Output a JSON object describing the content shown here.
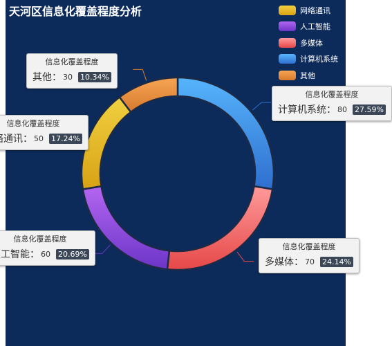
{
  "chart_data": {
    "type": "pie",
    "title": "天河区信息化覆盖程度分析",
    "series_name": "信息化覆盖程度",
    "slices": [
      {
        "name": "网络通讯",
        "value": 50,
        "percent": "17.24%",
        "color_top": "#f0d040",
        "color_bottom": "#d8a215"
      },
      {
        "name": "人工智能",
        "value": 60,
        "percent": "20.69%",
        "color_top": "#b366f0",
        "color_bottom": "#6c35c8"
      },
      {
        "name": "多媒体",
        "value": 70,
        "percent": "24.14%",
        "color_top": "#ff9a9a",
        "color_bottom": "#e64848"
      },
      {
        "name": "计算机系统",
        "value": 80,
        "percent": "27.59%",
        "color_top": "#56b4fb",
        "color_bottom": "#2f6fcf"
      },
      {
        "name": "其他",
        "value": 30,
        "percent": "10.34%",
        "color_top": "#f6a553",
        "color_bottom": "#d77a2e"
      }
    ],
    "legend_position": "top-right",
    "legend_order": [
      "网络通讯",
      "人工智能",
      "多媒体",
      "计算机系统",
      "其他"
    ]
  },
  "colors": {
    "background": "#0c2b5b",
    "slice_border": "#1c2a45",
    "label_box": "#f2f2f2",
    "percent_badge": "#3b4656"
  }
}
